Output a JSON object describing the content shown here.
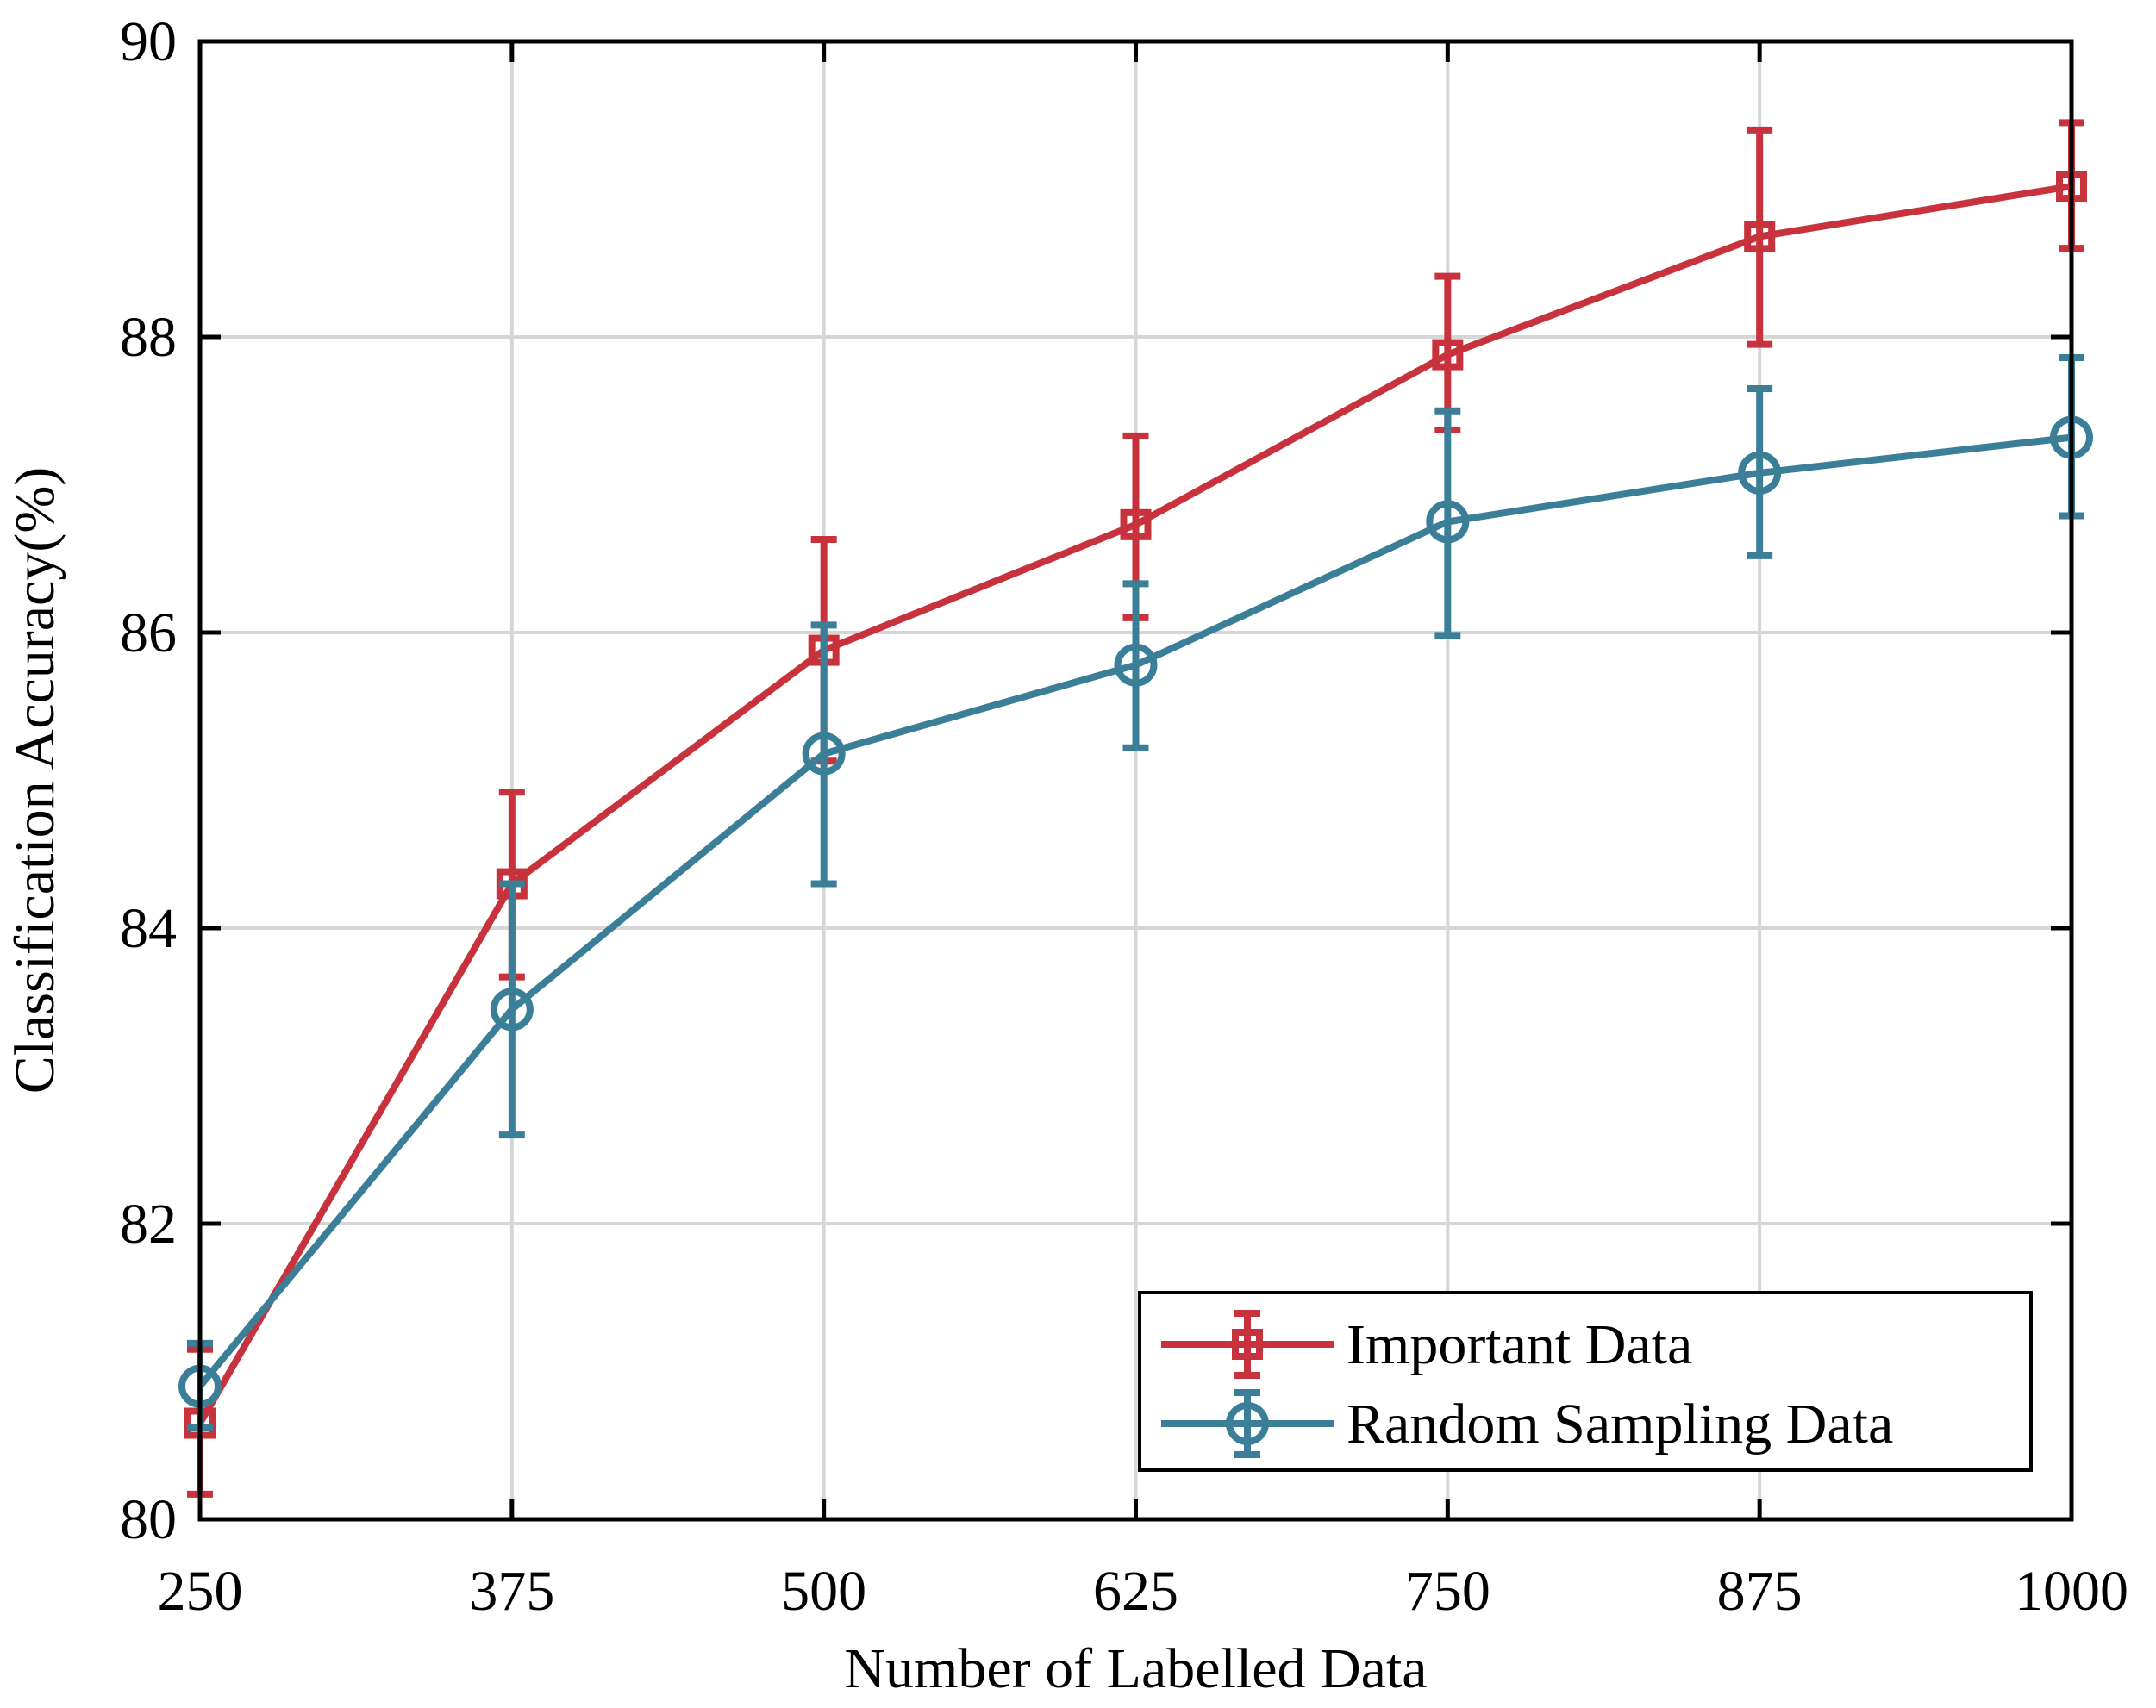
{
  "chart_data": {
    "type": "line",
    "title": "",
    "xlabel": "Number of Labelled Data",
    "ylabel": "Classification Accuracy(%)",
    "x": [
      250,
      375,
      500,
      625,
      750,
      875,
      1000
    ],
    "x_tick_labels": [
      "250",
      "375",
      "500",
      "625",
      "750",
      "875",
      "1000"
    ],
    "y_ticks": [
      80,
      82,
      84,
      86,
      88,
      90
    ],
    "y_tick_labels": [
      "80",
      "82",
      "84",
      "86",
      "88",
      "90"
    ],
    "xlim": [
      250,
      1000
    ],
    "ylim": [
      80,
      90
    ],
    "grid": true,
    "legend_position": "bottom-right",
    "series": [
      {
        "name": "Important Data",
        "color": "#c8323c",
        "marker": "square",
        "values": [
          80.65,
          84.3,
          85.88,
          86.73,
          87.88,
          88.68,
          89.02
        ],
        "error_low": [
          80.17,
          83.67,
          85.13,
          86.1,
          87.37,
          87.95,
          88.6
        ],
        "error_high": [
          81.15,
          84.92,
          86.63,
          87.33,
          88.41,
          89.4,
          89.45
        ]
      },
      {
        "name": "Random Sampling Data",
        "color": "#3a7f97",
        "marker": "circle",
        "values": [
          80.9,
          83.45,
          85.18,
          85.78,
          86.75,
          87.08,
          87.32
        ],
        "error_low": [
          80.62,
          82.6,
          84.3,
          85.22,
          85.98,
          86.52,
          86.79
        ],
        "error_high": [
          81.19,
          84.3,
          86.05,
          86.33,
          87.5,
          87.65,
          87.86
        ]
      }
    ]
  }
}
